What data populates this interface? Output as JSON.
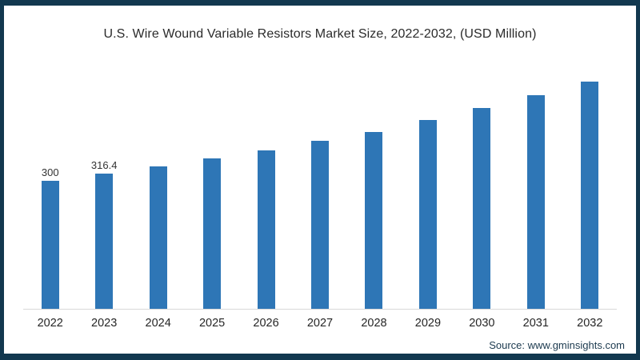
{
  "page": {
    "border_color": "#12384F",
    "background_color": "#ffffff"
  },
  "chart_data": {
    "type": "bar",
    "title": "U.S. Wire Wound Variable Resistors Market Size, 2022-2032, (USD Million)",
    "categories": [
      "2022",
      "2023",
      "2024",
      "2025",
      "2026",
      "2027",
      "2028",
      "2029",
      "2030",
      "2031",
      "2032"
    ],
    "values": [
      300,
      316.4,
      333.4,
      352.1,
      370.9,
      393.3,
      413.9,
      442.0,
      470.1,
      500.1,
      531.9
    ],
    "bar_labels": [
      "300",
      "316.4",
      "",
      "",
      "",
      "",
      "",
      "",
      "",
      "",
      ""
    ],
    "bar_color": "#2E76B6",
    "xlabel": "",
    "ylabel": "",
    "ylim": [
      0,
      560
    ],
    "grid": false,
    "legend": false,
    "value_axis_visible": false,
    "axis_line_color": "#d9d9d9"
  },
  "footer": {
    "source_label": "Source: www.gminsights.com"
  }
}
